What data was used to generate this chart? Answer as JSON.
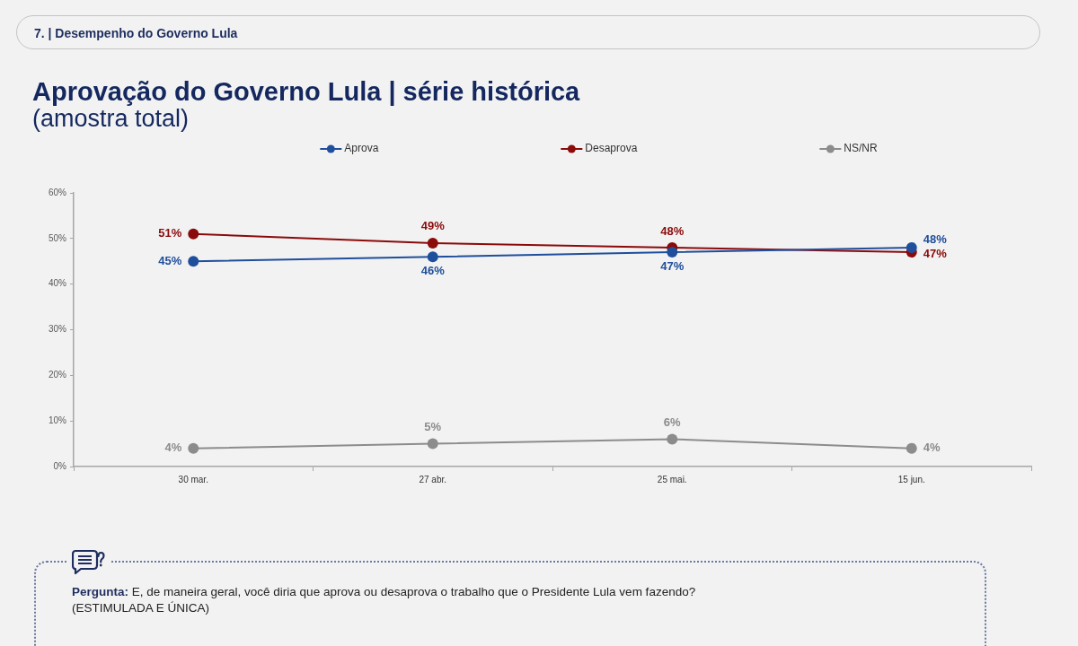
{
  "chart_data": {
    "type": "line",
    "title": "Aprovação do Governo Lula | série histórica",
    "subtitle": "(amostra total)",
    "categories": [
      "30 mar.",
      "27 abr.",
      "25 mai.",
      "15 jun."
    ],
    "series": [
      {
        "name": "Aprova",
        "color": "#1f4e9c",
        "values": [
          45,
          46,
          47,
          48
        ],
        "value_labels": [
          "45%",
          "46%",
          "47%",
          "48%"
        ]
      },
      {
        "name": "Desaprova",
        "color": "#8b0a0a",
        "values": [
          51,
          49,
          48,
          47
        ],
        "value_labels": [
          "51%",
          "49%",
          "48%",
          "47%"
        ]
      },
      {
        "name": "NS/NR",
        "color": "#8c8c8c",
        "values": [
          4,
          5,
          6,
          4
        ],
        "value_labels": [
          "4%",
          "5%",
          "6%",
          "4%"
        ]
      }
    ],
    "ylim": [
      0,
      60
    ],
    "yticks": [
      {
        "value": 0,
        "label": "0%"
      },
      {
        "value": 10,
        "label": "10%"
      },
      {
        "value": 20,
        "label": "20%"
      },
      {
        "value": 30,
        "label": "30%"
      },
      {
        "value": 40,
        "label": "40%"
      },
      {
        "value": 50,
        "label": "50%"
      },
      {
        "value": 60,
        "label": "60%"
      }
    ],
    "grid": false,
    "legend": "top",
    "marker": "circle",
    "line_style": "solid",
    "annotations": [
      "7. | Desempenho do Governo Lula",
      "Pergunta: E, de maneira geral, você diria que aprova ou desaprova o trabalho que o Presidente Lula vem fazendo?",
      "(ESTIMULADA E ÚNICA)"
    ]
  }
}
